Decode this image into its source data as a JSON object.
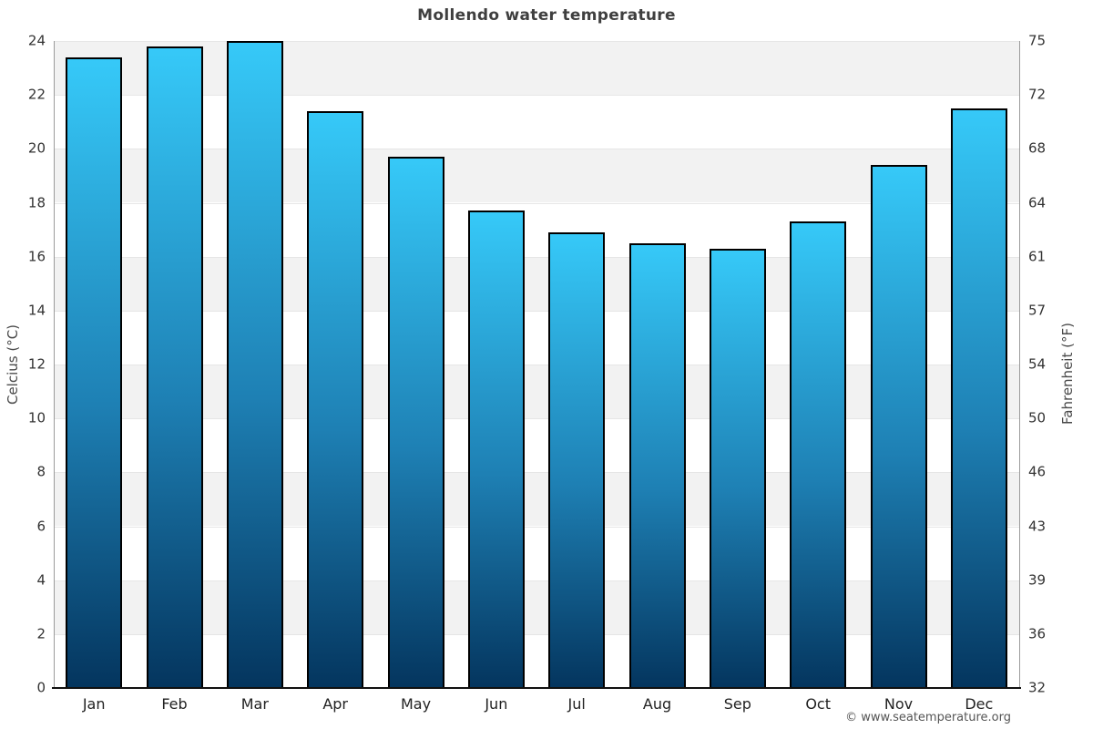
{
  "header": {
    "title": "Mollendo water temperature"
  },
  "footer": {
    "copyright": "© www.seatemperature.org"
  },
  "chart_data": {
    "type": "bar",
    "title": "Mollendo water temperature",
    "categories": [
      "Jan",
      "Feb",
      "Mar",
      "Apr",
      "May",
      "Jun",
      "Jul",
      "Aug",
      "Sep",
      "Oct",
      "Nov",
      "Dec"
    ],
    "values": [
      23.4,
      23.8,
      24.0,
      21.4,
      19.7,
      17.7,
      16.9,
      16.5,
      16.3,
      17.3,
      19.4,
      21.5
    ],
    "ylabel_left": "Celcius (°C)",
    "ylabel_right": "Fahrenheit (°F)",
    "ylim_left": [
      0,
      24
    ],
    "yticks_left": [
      0,
      2,
      4,
      6,
      8,
      10,
      12,
      14,
      16,
      18,
      20,
      22,
      24
    ],
    "yticks_right_labels": [
      "32",
      "36",
      "39",
      "43",
      "46",
      "50",
      "54",
      "57",
      "61",
      "64",
      "68",
      "72",
      "75"
    ],
    "xlabel": "",
    "grid": true,
    "legend": "none",
    "band_low_values": [
      2,
      6,
      10,
      14,
      18,
      22
    ],
    "colors": {
      "band": "#f2f2f2",
      "gridline": "#e6e6e6",
      "bar_gradient_top": "#36c9f8",
      "bar_gradient_mid": "#1e80b4",
      "bar_gradient_bottom": "#04355e",
      "bar_border": "#000000",
      "title_text": "#3f3f3f",
      "tick_text": "#333333"
    }
  }
}
